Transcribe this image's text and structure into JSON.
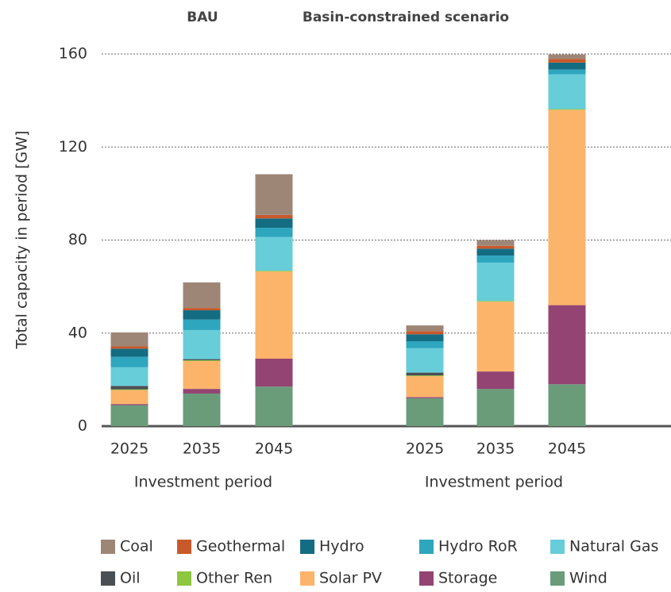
{
  "chart_data": {
    "type": "bar",
    "stacked": true,
    "ylabel": "Total capacity in period [GW]",
    "ylim": [
      0,
      160
    ],
    "yticks": [
      0,
      40,
      80,
      120,
      160
    ],
    "grid": true,
    "panels": [
      {
        "title": "BAU",
        "xlabel": "Investment period",
        "categories": [
          "2025",
          "2035",
          "2045"
        ]
      },
      {
        "title": "Basin-constrained scenario",
        "xlabel": "Investment period",
        "categories": [
          "2025",
          "2035",
          "2045"
        ]
      }
    ],
    "series": [
      {
        "name": "Coal",
        "color": "#9e8677",
        "values": [
          [
            6,
            11,
            17.5
          ],
          [
            2.5,
            2.5,
            2
          ]
        ]
      },
      {
        "name": "Geothermal",
        "color": "#c8592a",
        "values": [
          [
            1,
            1,
            1.5
          ],
          [
            1.3,
            1.2,
            1.5
          ]
        ]
      },
      {
        "name": "Hydro",
        "color": "#146c82",
        "values": [
          [
            3.5,
            4,
            4
          ],
          [
            3,
            3,
            3
          ]
        ]
      },
      {
        "name": "Hydro RoR",
        "color": "#2ea6be",
        "values": [
          [
            4.5,
            4.5,
            4
          ],
          [
            3,
            3,
            2
          ]
        ]
      },
      {
        "name": "Natural Gas",
        "color": "#67cdd9",
        "values": [
          [
            8,
            12.5,
            14.5
          ],
          [
            10.5,
            16.5,
            15
          ]
        ]
      },
      {
        "name": "Oil",
        "color": "#4a4f54",
        "values": [
          [
            1.5,
            0.5,
            0
          ],
          [
            1.2,
            0,
            0
          ]
        ]
      },
      {
        "name": "Other Ren",
        "color": "#8dc63f",
        "values": [
          [
            0.3,
            0.3,
            0.3
          ],
          [
            0.3,
            0.3,
            0.3
          ]
        ]
      },
      {
        "name": "Solar PV",
        "color": "#fbb46a",
        "values": [
          [
            6,
            12,
            37.5
          ],
          [
            9,
            30,
            84
          ]
        ]
      },
      {
        "name": "Storage",
        "color": "#934472",
        "values": [
          [
            0.5,
            2,
            12
          ],
          [
            0.5,
            7.5,
            34
          ]
        ]
      },
      {
        "name": "Wind",
        "color": "#6a9c7a",
        "values": [
          [
            9,
            14,
            17
          ],
          [
            12,
            16,
            18
          ]
        ]
      }
    ]
  }
}
